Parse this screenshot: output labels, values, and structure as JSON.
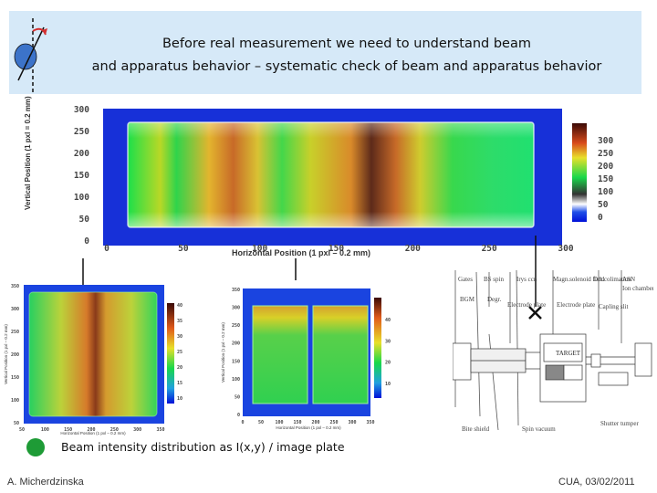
{
  "header": {
    "line1": "Before real measurement we need to understand beam",
    "line2": "and apparatus behavior – systematic check of beam and apparatus behavior"
  },
  "main_plot": {
    "x_ticks": [
      "0",
      "50",
      "100",
      "150",
      "200",
      "250",
      "300"
    ],
    "y_ticks": [
      "300",
      "250",
      "200",
      "150",
      "100",
      "50",
      "0"
    ],
    "colorbar_ticks": [
      "300",
      "250",
      "200",
      "150",
      "100",
      "50",
      "0"
    ],
    "x_title": "Horizontal Position (1 pxl – 0.2 mm)",
    "y_title": "Vertical Position (1 pxl = 0.2 mm)"
  },
  "left_plot": {
    "x_ticks": [
      "50",
      "100",
      "150",
      "200",
      "250",
      "300",
      "350"
    ],
    "y_ticks": [
      "350",
      "300",
      "250",
      "200",
      "150",
      "100",
      "50"
    ],
    "colorbar_ticks": [
      "40",
      "35",
      "30",
      "25",
      "20",
      "15",
      "10"
    ],
    "x_title": "Horizontal Position (1 pxl – 0.2 mm)",
    "y_title": "Vertical Position (1 pxl – 0.2 mm)"
  },
  "mid_plot": {
    "x_ticks": [
      "0",
      "50",
      "100",
      "150",
      "200",
      "250",
      "300",
      "350"
    ],
    "y_ticks": [
      "350",
      "300",
      "250",
      "200",
      "150",
      "100",
      "50",
      "0"
    ],
    "colorbar_ticks": [
      "40",
      "30",
      "20",
      "10"
    ],
    "x_title": "Horizontal Position (1 pxl – 0.2 mm)",
    "y_title": "Vertical Position (1 pxl – 0.2 mm)"
  },
  "schematic": {
    "target_label": "TARGET"
  },
  "caption": "Beam intensity distribution as I(x,y) / image plate",
  "footer": {
    "author": "A. Micherdzinska",
    "date": "CUA, 03/02/2011"
  },
  "colors": {
    "header_bg": "#d6e9f8",
    "dot": "#1e9b36"
  }
}
